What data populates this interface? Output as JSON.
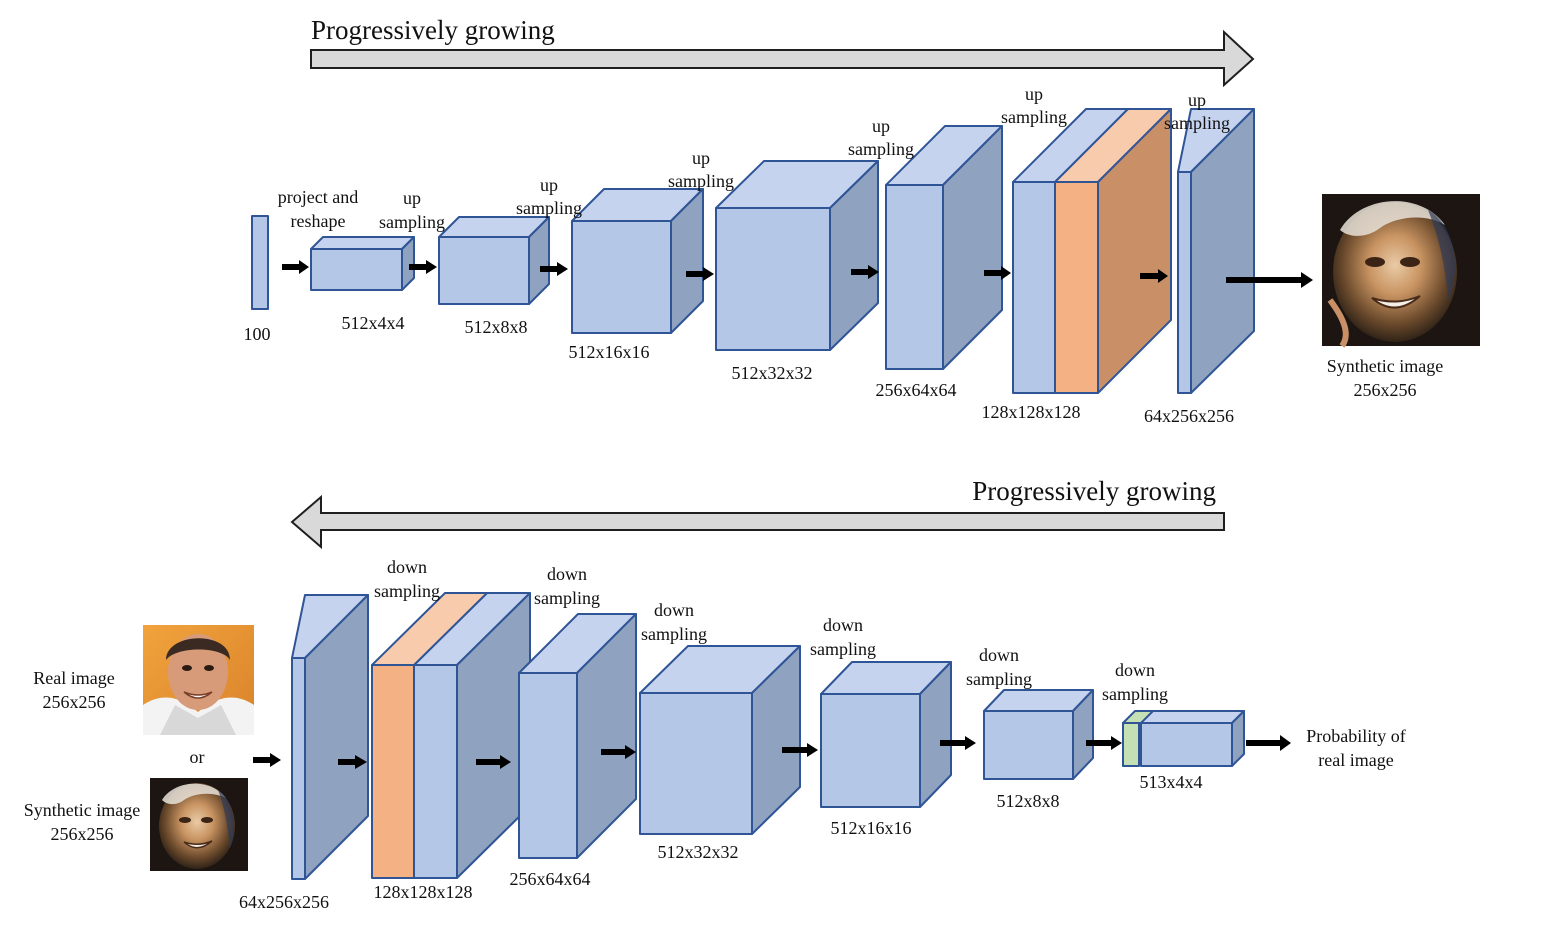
{
  "titles": {
    "generator_growing": "Progressively growing",
    "discriminator_growing": "Progressively growing"
  },
  "generator": {
    "input_size": "100",
    "project_label_line1": "project and",
    "project_label_line2": "reshape",
    "sampling_word": "sampling",
    "up_word": "up",
    "sizes": [
      "512x4x4",
      "512x8x8",
      "512x16x16",
      "512x32x32",
      "256x64x64",
      "128x128x128",
      "64x256x256"
    ],
    "output_label_line1": "Synthetic image",
    "output_label_line2": "256x256"
  },
  "discriminator": {
    "real_label_line1": "Real image",
    "real_label_line2": "256x256",
    "or_label": "or",
    "synthetic_label_line1": "Synthetic image",
    "synthetic_label_line2": "256x256",
    "down_word": "down",
    "sampling_word": "sampling",
    "sizes": [
      "64x256x256",
      "128x128x128",
      "256x64x64",
      "512x32x32",
      "512x16x16",
      "512x8x8",
      "513x4x4"
    ],
    "output_label_line1": "Probability of",
    "output_label_line2": "real image"
  },
  "colors": {
    "front": "#b4c7e7",
    "top": "#c5d3ee",
    "side": "#8fa2bf",
    "edge": "#2f5597",
    "new_front": "#f4b183",
    "new_top": "#f8cbad",
    "new_side": "#c98f67",
    "extra_channel": "#c5e0b4",
    "arrow": "#000000",
    "growing_arrow_fill": "#d9d9d9"
  },
  "icons": {
    "synthetic_face": "synthetic-face-image",
    "real_face": "real-face-photo"
  }
}
